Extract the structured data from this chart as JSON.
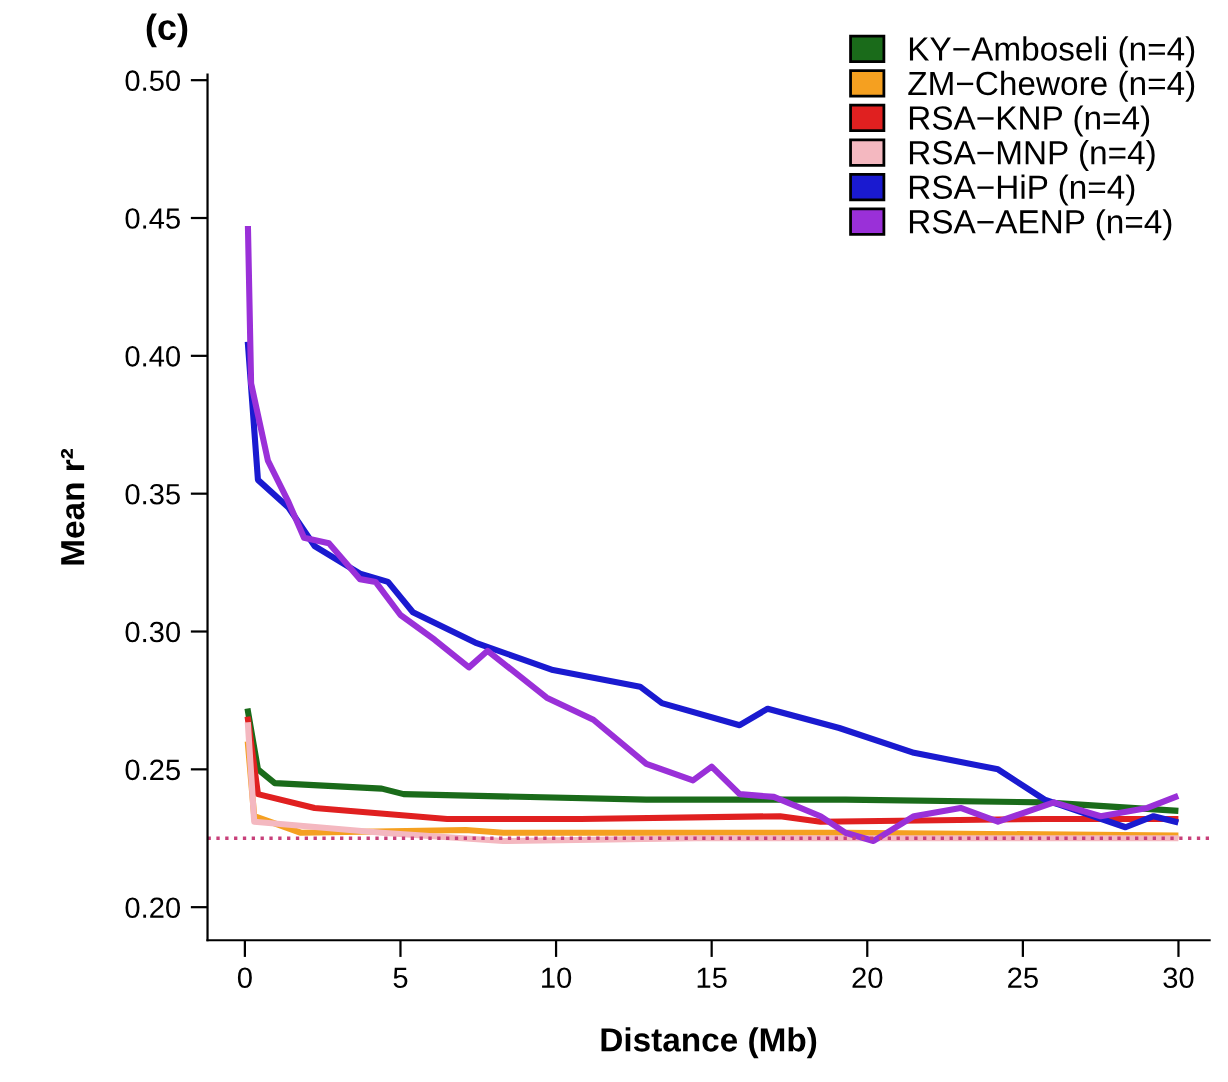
{
  "chart_data": {
    "type": "line",
    "xlabel": "Distance (Mb)",
    "ylabel": "Mean r²",
    "annotations": [
      "(c)"
    ],
    "xlim": [
      -1.2,
      31
    ],
    "ylim": [
      0.188,
      0.502
    ],
    "xticks": [
      0,
      5,
      10,
      15,
      20,
      25,
      30
    ],
    "yticks": [
      {
        "value": 0.2,
        "label": "0.20"
      },
      {
        "value": 0.25,
        "label": "0.25"
      },
      {
        "value": 0.3,
        "label": "0.30"
      },
      {
        "value": 0.35,
        "label": "0.35"
      },
      {
        "value": 0.4,
        "label": "0.40"
      },
      {
        "value": 0.45,
        "label": "0.45"
      },
      {
        "value": 0.5,
        "label": "0.50"
      }
    ],
    "grid": false,
    "legend": "top right",
    "line_style": "solid",
    "marker": "none",
    "ref_lines": [
      {
        "axis": "y",
        "value": 0.225,
        "label": null,
        "color": "#c8407a",
        "line_style": "dotted"
      }
    ],
    "series": [
      {
        "name": "KY−Amboseli (n=4)",
        "color": "#1a6b1a",
        "x": [
          0.1,
          0.42,
          0.96,
          4.4,
          5.1,
          12.9,
          19.3,
          25.7,
          29.9
        ],
        "values": [
          0.271,
          0.25,
          0.245,
          0.243,
          0.241,
          0.239,
          0.239,
          0.238,
          0.235
        ]
      },
      {
        "name": "ZM−Chewore (n=4)",
        "color": "#f5a020",
        "x": [
          0.1,
          0.3,
          1.8,
          7.1,
          8.3,
          19.3,
          29.9
        ],
        "values": [
          0.259,
          0.233,
          0.227,
          0.228,
          0.227,
          0.227,
          0.226
        ]
      },
      {
        "name": "RSA−KNP (n=4)",
        "color": "#e02020",
        "x": [
          0.1,
          0.42,
          2.24,
          6.5,
          10.8,
          17.2,
          18.5,
          25.7,
          29.9
        ],
        "values": [
          0.268,
          0.241,
          0.236,
          0.232,
          0.232,
          0.233,
          0.231,
          0.232,
          0.232
        ]
      },
      {
        "name": "RSA−MNP (n=4)",
        "color": "#f4b8c0",
        "x": [
          0.1,
          0.3,
          4.4,
          8.3,
          14.5,
          29.9
        ],
        "values": [
          0.266,
          0.231,
          0.227,
          0.224,
          0.225,
          0.225
        ]
      },
      {
        "name": "RSA−HiP (n=4)",
        "color": "#1a1ad0",
        "x": [
          0.1,
          0.42,
          1.4,
          2.24,
          3.7,
          4.6,
          5.4,
          7.4,
          9.9,
          12.7,
          13.4,
          15.9,
          16.8,
          19.1,
          21.5,
          24.2,
          25.7,
          28.3,
          29.2,
          29.9
        ],
        "values": [
          0.404,
          0.355,
          0.345,
          0.331,
          0.321,
          0.318,
          0.307,
          0.296,
          0.286,
          0.28,
          0.274,
          0.266,
          0.272,
          0.265,
          0.256,
          0.25,
          0.239,
          0.229,
          0.233,
          0.231
        ]
      },
      {
        "name": "RSA−AENP (n=4)",
        "color": "#9a30d8",
        "x": [
          0.1,
          0.2,
          0.74,
          1.4,
          1.9,
          2.7,
          3.7,
          4.2,
          5.0,
          6.1,
          7.2,
          7.8,
          9.7,
          11.2,
          12.9,
          14.4,
          15.0,
          15.9,
          17.0,
          18.5,
          19.3,
          20.2,
          21.5,
          23.0,
          24.2,
          26.0,
          27.5,
          29.0,
          29.9
        ],
        "values": [
          0.446,
          0.39,
          0.362,
          0.347,
          0.334,
          0.332,
          0.319,
          0.318,
          0.306,
          0.297,
          0.287,
          0.293,
          0.276,
          0.268,
          0.252,
          0.246,
          0.251,
          0.241,
          0.24,
          0.233,
          0.227,
          0.224,
          0.233,
          0.236,
          0.231,
          0.238,
          0.233,
          0.236,
          0.24
        ]
      }
    ]
  }
}
